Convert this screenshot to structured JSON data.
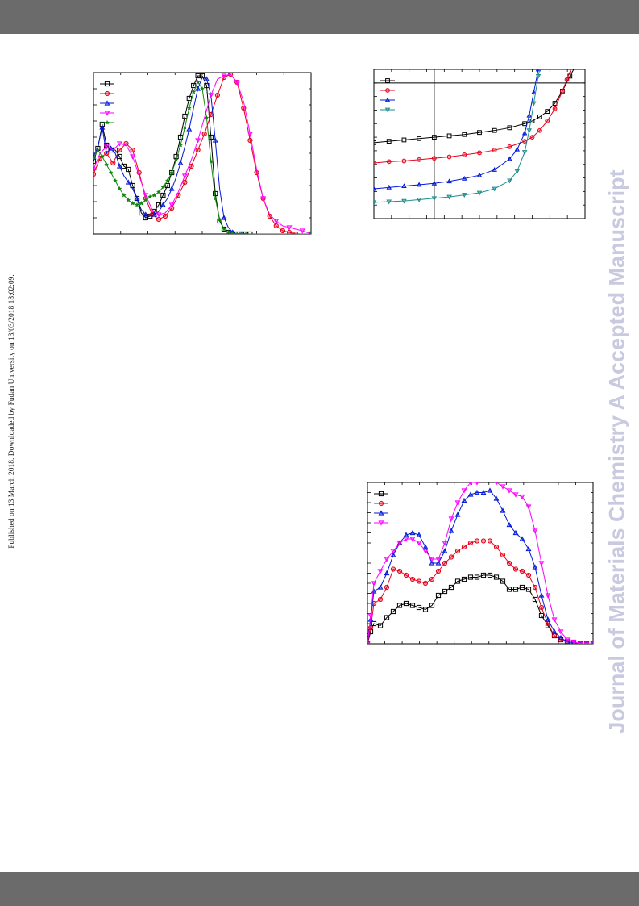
{
  "side_note": "Published on 13 March 2018. Downloaded by Fudan University on 13/03/2018 18:02:09.",
  "watermark": "Journal of Materials Chemistry A Accepted Manuscript",
  "colors": {
    "header_bar": "#6b6b6b",
    "watermark": "#c9c9e0",
    "black": "#000000",
    "red": "#e8001b",
    "blue": "#0018d6",
    "magenta": "#ff00ff",
    "green": "#118811",
    "teal": "#1a8c8c"
  },
  "chart_data": [
    {
      "id": "absorption-spectra",
      "type": "line",
      "title": "",
      "xlabel": "",
      "ylabel": "",
      "xlim": [
        0,
        100
      ],
      "ylim": [
        0,
        1.0
      ],
      "grid": false,
      "legend": "top-left",
      "tick_labels_visible": false,
      "series": [
        {
          "color": "#000000",
          "marker": "square",
          "x": [
            0,
            2,
            4,
            6,
            8,
            10,
            12,
            14,
            16,
            18,
            20,
            22,
            24,
            26,
            28,
            30,
            32,
            34,
            36,
            38,
            40,
            42,
            44,
            46,
            48,
            50,
            52,
            54,
            56,
            58,
            60,
            62,
            64,
            66,
            68,
            70,
            72,
            100
          ],
          "y": [
            0.45,
            0.53,
            0.68,
            0.55,
            0.52,
            0.52,
            0.48,
            0.42,
            0.4,
            0.3,
            0.22,
            0.13,
            0.1,
            0.11,
            0.14,
            0.18,
            0.24,
            0.3,
            0.38,
            0.48,
            0.6,
            0.73,
            0.84,
            0.92,
            0.98,
            0.98,
            0.92,
            0.6,
            0.25,
            0.08,
            0.03,
            0.01,
            0.0,
            0.0,
            0.0,
            0.0,
            0.0,
            0.0
          ],
          "marker_every": 1
        },
        {
          "color": "#e8001b",
          "marker": "circle",
          "x": [
            0,
            3,
            6,
            9,
            12,
            15,
            18,
            21,
            24,
            27,
            30,
            33,
            36,
            39,
            42,
            45,
            48,
            51,
            54,
            57,
            60,
            63,
            66,
            69,
            72,
            75,
            78,
            81,
            84,
            87,
            90,
            93,
            100
          ],
          "y": [
            0.37,
            0.47,
            0.5,
            0.44,
            0.52,
            0.56,
            0.52,
            0.38,
            0.22,
            0.12,
            0.09,
            0.11,
            0.16,
            0.24,
            0.32,
            0.42,
            0.52,
            0.62,
            0.74,
            0.86,
            0.97,
            0.99,
            0.94,
            0.78,
            0.58,
            0.38,
            0.22,
            0.11,
            0.05,
            0.02,
            0.01,
            0.0,
            0.0
          ],
          "marker_every": 1
        },
        {
          "color": "#0018d6",
          "marker": "triangle-up",
          "x": [
            0,
            2,
            4,
            6,
            8,
            10,
            12,
            14,
            16,
            18,
            20,
            22,
            24,
            26,
            28,
            30,
            32,
            34,
            36,
            38,
            40,
            42,
            44,
            46,
            48,
            50,
            52,
            54,
            56,
            58,
            60,
            62,
            64,
            66,
            68,
            70,
            100
          ],
          "y": [
            0.48,
            0.54,
            0.66,
            0.5,
            0.53,
            0.5,
            0.42,
            0.36,
            0.32,
            0.28,
            0.22,
            0.15,
            0.12,
            0.11,
            0.12,
            0.14,
            0.18,
            0.22,
            0.28,
            0.35,
            0.44,
            0.54,
            0.65,
            0.78,
            0.9,
            0.97,
            0.96,
            0.86,
            0.58,
            0.28,
            0.1,
            0.04,
            0.01,
            0.0,
            0.0,
            0.0,
            0.0
          ],
          "marker_every": 2
        },
        {
          "color": "#ff00ff",
          "marker": "triangle-down",
          "x": [
            0,
            3,
            6,
            9,
            12,
            15,
            18,
            21,
            24,
            27,
            30,
            33,
            36,
            39,
            42,
            45,
            48,
            51,
            54,
            57,
            60,
            63,
            66,
            69,
            72,
            75,
            78,
            81,
            84,
            87,
            90,
            93,
            96,
            100
          ],
          "y": [
            0.4,
            0.5,
            0.54,
            0.52,
            0.56,
            0.55,
            0.48,
            0.36,
            0.24,
            0.15,
            0.12,
            0.13,
            0.18,
            0.26,
            0.36,
            0.46,
            0.58,
            0.72,
            0.86,
            0.96,
            0.98,
            0.99,
            0.94,
            0.82,
            0.62,
            0.4,
            0.22,
            0.12,
            0.08,
            0.05,
            0.04,
            0.03,
            0.02,
            0.0
          ],
          "marker_every": 2
        },
        {
          "color": "#118811",
          "marker": "star",
          "x": [
            0,
            2,
            4,
            6,
            8,
            10,
            12,
            14,
            16,
            18,
            20,
            22,
            24,
            26,
            28,
            30,
            32,
            34,
            36,
            38,
            40,
            42,
            44,
            46,
            48,
            50,
            52,
            54,
            56,
            58,
            60,
            62,
            64,
            66,
            68,
            70,
            100
          ],
          "y": [
            0.47,
            0.52,
            0.48,
            0.43,
            0.38,
            0.33,
            0.28,
            0.24,
            0.21,
            0.19,
            0.18,
            0.19,
            0.21,
            0.23,
            0.24,
            0.26,
            0.29,
            0.33,
            0.38,
            0.46,
            0.55,
            0.66,
            0.78,
            0.88,
            0.94,
            0.9,
            0.72,
            0.45,
            0.22,
            0.09,
            0.03,
            0.01,
            0.0,
            0.0,
            0.0,
            0.0,
            0.0
          ],
          "marker_every": 1
        }
      ]
    },
    {
      "id": "jv-curves",
      "type": "line",
      "title": "",
      "xlabel": "",
      "ylabel": "",
      "xlim": [
        -0.4,
        1.0
      ],
      "ylim": [
        -20,
        2
      ],
      "grid": false,
      "legend": "top-left",
      "tick_labels_visible": false,
      "reference_lines": {
        "x": 0,
        "y": 0
      },
      "series": [
        {
          "color": "#000000",
          "marker": "square",
          "x": [
            -0.4,
            -0.3,
            -0.2,
            -0.1,
            0.0,
            0.1,
            0.2,
            0.3,
            0.4,
            0.5,
            0.6,
            0.65,
            0.7,
            0.75,
            0.8,
            0.85,
            0.9,
            0.95
          ],
          "y": [
            -8.8,
            -8.6,
            -8.4,
            -8.2,
            -8.0,
            -7.8,
            -7.6,
            -7.3,
            -7.0,
            -6.6,
            -6.0,
            -5.6,
            -5.0,
            -4.2,
            -3.0,
            -1.2,
            1.0,
            3.0
          ]
        },
        {
          "color": "#e8001b",
          "marker": "circle",
          "x": [
            -0.4,
            -0.3,
            -0.2,
            -0.1,
            0.0,
            0.1,
            0.2,
            0.3,
            0.4,
            0.5,
            0.6,
            0.65,
            0.7,
            0.75,
            0.8,
            0.85,
            0.88,
            0.91
          ],
          "y": [
            -11.8,
            -11.6,
            -11.5,
            -11.3,
            -11.1,
            -10.9,
            -10.6,
            -10.3,
            -9.9,
            -9.4,
            -8.6,
            -8.0,
            -7.0,
            -5.6,
            -3.8,
            -1.2,
            0.5,
            2.2
          ]
        },
        {
          "color": "#0018d6",
          "marker": "triangle-up",
          "x": [
            -0.4,
            -0.3,
            -0.2,
            -0.1,
            0.0,
            0.1,
            0.2,
            0.3,
            0.4,
            0.5,
            0.55,
            0.6,
            0.63,
            0.66,
            0.69,
            0.72
          ],
          "y": [
            -15.6,
            -15.4,
            -15.2,
            -15.0,
            -14.8,
            -14.5,
            -14.1,
            -13.6,
            -12.8,
            -11.2,
            -9.8,
            -7.4,
            -4.8,
            -1.4,
            2.0,
            4.0
          ]
        },
        {
          "color": "#1a8c8c",
          "marker": "triangle-down",
          "x": [
            -0.4,
            -0.3,
            -0.2,
            -0.1,
            0.0,
            0.1,
            0.2,
            0.3,
            0.4,
            0.5,
            0.55,
            0.6,
            0.63,
            0.66,
            0.69,
            0.72
          ],
          "y": [
            -17.6,
            -17.5,
            -17.4,
            -17.2,
            -17.0,
            -16.8,
            -16.5,
            -16.2,
            -15.6,
            -14.4,
            -13.0,
            -10.2,
            -7.0,
            -3.0,
            1.0,
            4.0
          ]
        }
      ]
    },
    {
      "id": "eqe-spectra",
      "type": "line",
      "title": "",
      "xlabel": "",
      "ylabel": "",
      "xlim": [
        300,
        1000
      ],
      "ylim": [
        0,
        80
      ],
      "grid": false,
      "legend": "top-left",
      "tick_labels_visible": false,
      "series": [
        {
          "color": "#000000",
          "marker": "square",
          "x": [
            300,
            310,
            320,
            340,
            360,
            380,
            400,
            420,
            440,
            460,
            480,
            500,
            520,
            540,
            560,
            580,
            600,
            620,
            640,
            660,
            680,
            700,
            720,
            740,
            760,
            780,
            800,
            820,
            840,
            860,
            880,
            900,
            920,
            940,
            960,
            980,
            1000
          ],
          "y": [
            0,
            6,
            10,
            9,
            13,
            16,
            19,
            20,
            19,
            18,
            17,
            19,
            24,
            26,
            28,
            31,
            32,
            33,
            33,
            34,
            34,
            33,
            31,
            27,
            27,
            28,
            27,
            22,
            14,
            9,
            4,
            2,
            1,
            0.5,
            0,
            0,
            0
          ]
        },
        {
          "color": "#e8001b",
          "marker": "circle",
          "x": [
            300,
            310,
            320,
            340,
            360,
            380,
            400,
            420,
            440,
            460,
            480,
            500,
            520,
            540,
            560,
            580,
            600,
            620,
            640,
            660,
            680,
            700,
            720,
            740,
            760,
            780,
            800,
            820,
            840,
            860,
            880,
            900,
            920,
            940,
            960,
            980,
            1000
          ],
          "y": [
            0,
            8,
            20,
            22,
            28,
            37,
            36,
            34,
            32,
            31,
            30,
            32,
            36,
            40,
            43,
            46,
            48,
            50,
            51,
            51,
            51,
            48,
            44,
            40,
            37,
            36,
            34,
            28,
            18,
            10,
            4,
            2,
            1,
            0.5,
            0,
            0,
            0
          ]
        },
        {
          "color": "#0018d6",
          "marker": "triangle-up",
          "x": [
            300,
            310,
            320,
            340,
            360,
            380,
            400,
            420,
            440,
            460,
            480,
            500,
            520,
            540,
            560,
            580,
            600,
            620,
            640,
            660,
            680,
            700,
            720,
            740,
            760,
            780,
            800,
            820,
            840,
            860,
            880,
            900,
            920,
            940,
            960,
            980,
            1000
          ],
          "y": [
            0,
            12,
            26,
            28,
            35,
            44,
            50,
            54,
            55,
            54,
            48,
            40,
            40,
            46,
            56,
            64,
            71,
            74,
            75,
            75,
            76,
            72,
            66,
            59,
            55,
            52,
            47,
            38,
            24,
            12,
            6,
            3,
            1,
            0.5,
            0,
            0,
            0
          ]
        },
        {
          "color": "#ff00ff",
          "marker": "triangle-down",
          "x": [
            300,
            310,
            320,
            340,
            360,
            380,
            400,
            420,
            440,
            460,
            480,
            500,
            520,
            540,
            560,
            580,
            600,
            620,
            640,
            660,
            680,
            700,
            720,
            740,
            760,
            780,
            800,
            820,
            840,
            860,
            880,
            900,
            920,
            940,
            960,
            980,
            1000
          ],
          "y": [
            0,
            14,
            30,
            36,
            42,
            46,
            50,
            52,
            52,
            50,
            46,
            42,
            42,
            50,
            62,
            70,
            76,
            80,
            80,
            81,
            81,
            80,
            78,
            76,
            74,
            73,
            68,
            56,
            40,
            24,
            12,
            6,
            2,
            1,
            0,
            0,
            0
          ]
        }
      ]
    }
  ]
}
